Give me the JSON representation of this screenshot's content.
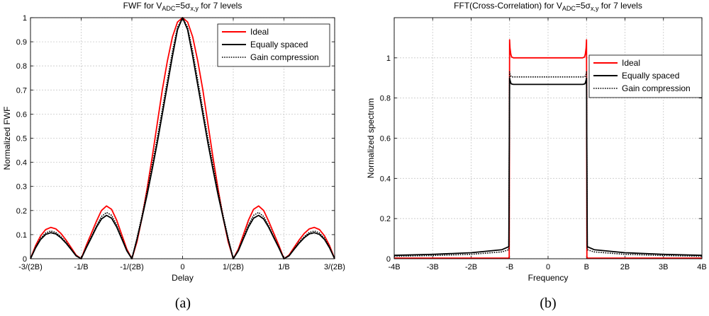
{
  "chart_data": [
    {
      "type": "line",
      "title": {
        "prefix": "FWF for V",
        "sub1": "ADC",
        "mid": "=5σ",
        "sub2": "x,y",
        "suffix": " for 7 levels"
      },
      "xlabel": "Delay",
      "ylabel": "Normalized FWF",
      "xlim": [
        -1.5,
        1.5
      ],
      "ylim": [
        0,
        1
      ],
      "xticks": [
        {
          "v": -1.5,
          "label": "-3/(2B)"
        },
        {
          "v": -1.0,
          "label": "-1/B"
        },
        {
          "v": -0.5,
          "label": "-1/(2B)"
        },
        {
          "v": 0,
          "label": "0"
        },
        {
          "v": 0.5,
          "label": "1/(2B)"
        },
        {
          "v": 1.0,
          "label": "1/B"
        },
        {
          "v": 1.5,
          "label": "3/(2B)"
        }
      ],
      "yticks": [
        "0",
        "0.1",
        "0.2",
        "0.3",
        "0.4",
        "0.5",
        "0.6",
        "0.7",
        "0.8",
        "0.9",
        "1"
      ],
      "grid": true,
      "legend": "top-right",
      "series": [
        {
          "name": "Ideal",
          "color": "#ff0000",
          "style": "solid",
          "x": [
            -1.5,
            -1.45,
            -1.4,
            -1.35,
            -1.3,
            -1.25,
            -1.2,
            -1.15,
            -1.1,
            -1.05,
            -1.0,
            -0.95,
            -0.9,
            -0.85,
            -0.8,
            -0.75,
            -0.7,
            -0.65,
            -0.6,
            -0.55,
            -0.5,
            -0.45,
            -0.4,
            -0.35,
            -0.3,
            -0.25,
            -0.2,
            -0.15,
            -0.1,
            -0.05,
            0,
            0.05,
            0.1,
            0.15,
            0.2,
            0.25,
            0.3,
            0.35,
            0.4,
            0.45,
            0.5,
            0.55,
            0.6,
            0.65,
            0.7,
            0.75,
            0.8,
            0.85,
            0.9,
            0.95,
            1.0,
            1.05,
            1.1,
            1.15,
            1.2,
            1.25,
            1.3,
            1.35,
            1.4,
            1.45,
            1.5
          ],
          "y": [
            0.0,
            0.054,
            0.095,
            0.121,
            0.13,
            0.124,
            0.105,
            0.078,
            0.047,
            0.015,
            0.0,
            0.055,
            0.105,
            0.155,
            0.2,
            0.219,
            0.205,
            0.16,
            0.1,
            0.04,
            0.0,
            0.07,
            0.17,
            0.29,
            0.42,
            0.56,
            0.7,
            0.82,
            0.92,
            0.982,
            1.0,
            0.982,
            0.92,
            0.82,
            0.7,
            0.56,
            0.42,
            0.29,
            0.17,
            0.07,
            0.0,
            0.04,
            0.1,
            0.16,
            0.205,
            0.219,
            0.2,
            0.155,
            0.105,
            0.055,
            0.0,
            0.015,
            0.047,
            0.078,
            0.105,
            0.124,
            0.13,
            0.121,
            0.095,
            0.054,
            0.0
          ]
        },
        {
          "name": "Equally spaced",
          "color": "#000000",
          "style": "solid",
          "x": [
            -1.5,
            -1.45,
            -1.4,
            -1.35,
            -1.3,
            -1.25,
            -1.2,
            -1.15,
            -1.1,
            -1.05,
            -1.0,
            -0.95,
            -0.9,
            -0.85,
            -0.8,
            -0.75,
            -0.7,
            -0.65,
            -0.6,
            -0.55,
            -0.5,
            -0.45,
            -0.4,
            -0.35,
            -0.3,
            -0.25,
            -0.2,
            -0.15,
            -0.1,
            -0.05,
            0,
            0.05,
            0.1,
            0.15,
            0.2,
            0.25,
            0.3,
            0.35,
            0.4,
            0.45,
            0.5,
            0.55,
            0.6,
            0.65,
            0.7,
            0.75,
            0.8,
            0.85,
            0.9,
            0.95,
            1.0,
            1.05,
            1.1,
            1.15,
            1.2,
            1.25,
            1.3,
            1.35,
            1.4,
            1.45,
            1.5
          ],
          "y": [
            0.0,
            0.045,
            0.08,
            0.101,
            0.108,
            0.103,
            0.087,
            0.065,
            0.039,
            0.012,
            0.0,
            0.045,
            0.087,
            0.13,
            0.165,
            0.18,
            0.168,
            0.132,
            0.083,
            0.033,
            0.0,
            0.08,
            0.17,
            0.265,
            0.37,
            0.48,
            0.6,
            0.72,
            0.84,
            0.95,
            1.0,
            0.95,
            0.84,
            0.72,
            0.6,
            0.48,
            0.37,
            0.265,
            0.17,
            0.08,
            0.0,
            0.033,
            0.083,
            0.132,
            0.168,
            0.18,
            0.165,
            0.13,
            0.087,
            0.045,
            0.0,
            0.012,
            0.039,
            0.065,
            0.087,
            0.103,
            0.108,
            0.101,
            0.08,
            0.045,
            0.0
          ]
        },
        {
          "name": "Gain compression",
          "color": "#000000",
          "style": "dotted",
          "x": [
            -1.5,
            -1.45,
            -1.4,
            -1.35,
            -1.3,
            -1.25,
            -1.2,
            -1.15,
            -1.1,
            -1.05,
            -1.0,
            -0.95,
            -0.9,
            -0.85,
            -0.8,
            -0.75,
            -0.7,
            -0.65,
            -0.6,
            -0.55,
            -0.5,
            -0.45,
            -0.4,
            -0.35,
            -0.3,
            -0.25,
            -0.2,
            -0.15,
            -0.1,
            -0.05,
            0,
            0.05,
            0.1,
            0.15,
            0.2,
            0.25,
            0.3,
            0.35,
            0.4,
            0.45,
            0.5,
            0.55,
            0.6,
            0.65,
            0.7,
            0.75,
            0.8,
            0.85,
            0.9,
            0.95,
            1.0,
            1.05,
            1.1,
            1.15,
            1.2,
            1.25,
            1.3,
            1.35,
            1.4,
            1.45,
            1.5
          ],
          "y": [
            0.0,
            0.048,
            0.085,
            0.107,
            0.115,
            0.109,
            0.092,
            0.069,
            0.041,
            0.013,
            0.0,
            0.048,
            0.092,
            0.137,
            0.175,
            0.192,
            0.18,
            0.141,
            0.088,
            0.035,
            0.0,
            0.085,
            0.18,
            0.28,
            0.39,
            0.5,
            0.62,
            0.74,
            0.86,
            0.96,
            1.0,
            0.96,
            0.86,
            0.74,
            0.62,
            0.5,
            0.39,
            0.28,
            0.18,
            0.085,
            0.0,
            0.035,
            0.088,
            0.141,
            0.18,
            0.192,
            0.175,
            0.137,
            0.092,
            0.048,
            0.0,
            0.013,
            0.041,
            0.069,
            0.092,
            0.109,
            0.115,
            0.107,
            0.085,
            0.048,
            0.0
          ]
        }
      ]
    },
    {
      "type": "line",
      "title": {
        "prefix": "FFT(Cross-Correlation) for V",
        "sub1": "ADC",
        "mid": "=5σ",
        "sub2": "x,y",
        "suffix": " for 7 levels"
      },
      "xlabel": "Frequency",
      "ylabel": "Normalized spectrum",
      "xlim": [
        -4,
        4
      ],
      "ylim": [
        0,
        1.2
      ],
      "xticks": [
        {
          "v": -4,
          "label": "-4B"
        },
        {
          "v": -3,
          "label": "-3B"
        },
        {
          "v": -2,
          "label": "-2B"
        },
        {
          "v": -1,
          "label": "-B"
        },
        {
          "v": 0,
          "label": "0"
        },
        {
          "v": 1,
          "label": "B"
        },
        {
          "v": 2,
          "label": "2B"
        },
        {
          "v": 3,
          "label": "3B"
        },
        {
          "v": 4,
          "label": "4B"
        }
      ],
      "yticks": [
        "0",
        "0.2",
        "0.4",
        "0.6",
        "0.8",
        "1"
      ],
      "grid": true,
      "legend": "top-right",
      "series": [
        {
          "name": "Ideal",
          "color": "#ff0000",
          "style": "solid",
          "x": [
            -4,
            -1.02,
            -1.01,
            -1.0,
            -0.99,
            -0.97,
            -0.95,
            -0.9,
            0,
            0.9,
            0.95,
            0.97,
            0.99,
            1.0,
            1.01,
            1.02,
            4
          ],
          "y": [
            0.003,
            0.003,
            0.01,
            1.09,
            1.05,
            1.02,
            1.005,
            1.0,
            1.0,
            1.0,
            1.005,
            1.02,
            1.05,
            1.09,
            0.01,
            0.003,
            0.003
          ]
        },
        {
          "name": "Equally spaced",
          "color": "#000000",
          "style": "solid",
          "x": [
            -4,
            -3,
            -2,
            -1.2,
            -1.02,
            -1.0,
            -0.99,
            -0.97,
            -0.95,
            -0.9,
            0,
            0.9,
            0.95,
            0.97,
            0.99,
            1.0,
            1.02,
            1.2,
            2,
            3,
            4
          ],
          "y": [
            0.017,
            0.022,
            0.03,
            0.045,
            0.06,
            0.9,
            0.89,
            0.875,
            0.87,
            0.868,
            0.868,
            0.868,
            0.87,
            0.875,
            0.89,
            0.9,
            0.06,
            0.045,
            0.03,
            0.022,
            0.017
          ]
        },
        {
          "name": "Gain compression",
          "color": "#000000",
          "style": "dotted",
          "x": [
            -4,
            -3,
            -2,
            -1.2,
            -1.02,
            -1.0,
            -0.99,
            -0.97,
            -0.95,
            -0.9,
            0,
            0.9,
            0.95,
            0.97,
            0.99,
            1.0,
            1.02,
            1.2,
            2,
            3,
            4
          ],
          "y": [
            0.012,
            0.016,
            0.022,
            0.034,
            0.045,
            0.93,
            0.92,
            0.91,
            0.905,
            0.905,
            0.905,
            0.905,
            0.905,
            0.91,
            0.92,
            0.93,
            0.045,
            0.034,
            0.022,
            0.016,
            0.012
          ]
        }
      ]
    }
  ],
  "captions": [
    "(a)",
    "(b)"
  ]
}
